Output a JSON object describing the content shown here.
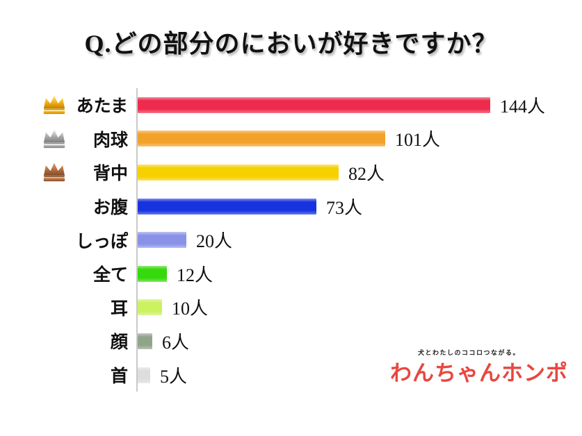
{
  "title": "Q.どの部分のにおいが好きですか？",
  "chart_data": {
    "type": "bar",
    "orientation": "horizontal",
    "title": "Q.どの部分のにおいが好きですか？",
    "unit": "人",
    "categories": [
      "あたま",
      "肉球",
      "背中",
      "お腹",
      "しっぽ",
      "全て",
      "耳",
      "顔",
      "首"
    ],
    "values": [
      144,
      101,
      82,
      73,
      20,
      12,
      10,
      6,
      5
    ],
    "value_labels": [
      "144人",
      "101人",
      "82人",
      "73人",
      "20人",
      "12人",
      "10人",
      "6人",
      "5人"
    ],
    "bar_colors": [
      "#ee2b4c",
      "#f2a129",
      "#f7d000",
      "#1733df",
      "#8a92e8",
      "#36d90b",
      "#cbf161",
      "#90a48c",
      "#dddddd"
    ],
    "ranks": [
      "gold",
      "silver",
      "bronze",
      "",
      "",
      "",
      "",
      "",
      ""
    ],
    "xlim": [
      0,
      160
    ],
    "grid": false,
    "legend": false,
    "axis_line_color": "#c9c9c9"
  },
  "crown_colors": {
    "gold": [
      "#ffe98c",
      "#f2ae14",
      "#c07f00"
    ],
    "silver": [
      "#f0f0f0",
      "#a8a8a8",
      "#7d7d7d"
    ],
    "bronze": [
      "#e0a273",
      "#b06b3e",
      "#7e4a26"
    ]
  },
  "footer": {
    "tagline": "犬とわたしのココロつながる。",
    "logo_text": "わんちゃんホンポ",
    "logo_color": "#e8473f"
  }
}
